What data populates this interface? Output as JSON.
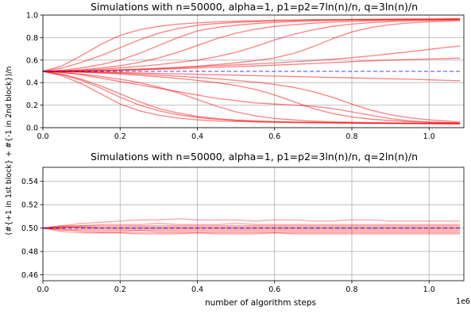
{
  "colors": {
    "series": "#ff0000",
    "reference": "#0000ff"
  },
  "shared": {
    "xlabel": "number of algorithm steps",
    "x_exponent_label": "1e6",
    "ylabel": "(#{+1 in 1st block} + #{-1 in 2nd block})/n"
  },
  "chart_data": [
    {
      "type": "line",
      "title": "Simulations with n=50000, alpha=1, p1=p2=7ln(n)/n, q=3ln(n)/n",
      "xlabel": "",
      "ylabel": "(#{+1 in 1st block} + #{-1 in 2nd block})/n",
      "xlim": [
        0,
        1.09
      ],
      "ylim": [
        0.0,
        1.0
      ],
      "xticks": [
        "0.0",
        "0.2",
        "0.4",
        "0.6",
        "0.8",
        "1.0"
      ],
      "yticks": [
        "0.0",
        "0.2",
        "0.4",
        "0.6",
        "0.8",
        "1.0"
      ],
      "grid": true,
      "reference_line": {
        "y": 0.5,
        "style": "dashed"
      },
      "x": [
        0.0,
        0.05,
        0.1,
        0.15,
        0.2,
        0.25,
        0.3,
        0.35,
        0.4,
        0.45,
        0.5,
        0.55,
        0.6,
        0.65,
        0.7,
        0.75,
        0.8,
        0.85,
        0.9,
        0.95,
        1.0,
        1.05,
        1.08
      ],
      "series": [
        {
          "values": [
            0.5,
            0.55,
            0.64,
            0.74,
            0.82,
            0.87,
            0.9,
            0.92,
            0.93,
            0.94,
            0.945,
            0.95,
            0.955,
            0.957,
            0.96,
            0.96,
            0.962,
            0.963,
            0.964,
            0.965,
            0.965,
            0.966,
            0.967
          ]
        },
        {
          "values": [
            0.5,
            0.53,
            0.58,
            0.64,
            0.71,
            0.78,
            0.84,
            0.88,
            0.91,
            0.925,
            0.935,
            0.942,
            0.948,
            0.952,
            0.955,
            0.957,
            0.959,
            0.96,
            0.962,
            0.963,
            0.964,
            0.965,
            0.966
          ]
        },
        {
          "values": [
            0.5,
            0.51,
            0.53,
            0.56,
            0.6,
            0.66,
            0.73,
            0.8,
            0.86,
            0.89,
            0.91,
            0.925,
            0.935,
            0.942,
            0.948,
            0.952,
            0.955,
            0.957,
            0.959,
            0.961,
            0.962,
            0.963,
            0.964
          ]
        },
        {
          "values": [
            0.5,
            0.505,
            0.515,
            0.53,
            0.55,
            0.58,
            0.62,
            0.67,
            0.73,
            0.79,
            0.84,
            0.875,
            0.9,
            0.915,
            0.928,
            0.937,
            0.944,
            0.949,
            0.953,
            0.956,
            0.958,
            0.96,
            0.961
          ]
        },
        {
          "values": [
            0.5,
            0.502,
            0.508,
            0.518,
            0.53,
            0.545,
            0.56,
            0.58,
            0.6,
            0.63,
            0.67,
            0.72,
            0.78,
            0.83,
            0.87,
            0.9,
            0.92,
            0.933,
            0.942,
            0.948,
            0.952,
            0.955,
            0.957
          ]
        },
        {
          "values": [
            0.5,
            0.501,
            0.503,
            0.506,
            0.51,
            0.516,
            0.524,
            0.534,
            0.546,
            0.56,
            0.576,
            0.595,
            0.62,
            0.66,
            0.72,
            0.79,
            0.85,
            0.89,
            0.915,
            0.93,
            0.94,
            0.946,
            0.95
          ]
        },
        {
          "values": [
            0.5,
            0.502,
            0.505,
            0.51,
            0.515,
            0.52,
            0.527,
            0.534,
            0.542,
            0.55,
            0.558,
            0.566,
            0.575,
            0.585,
            0.596,
            0.608,
            0.622,
            0.638,
            0.656,
            0.675,
            0.695,
            0.715,
            0.725
          ]
        },
        {
          "values": [
            0.5,
            0.501,
            0.503,
            0.506,
            0.51,
            0.514,
            0.519,
            0.524,
            0.53,
            0.536,
            0.542,
            0.548,
            0.555,
            0.562,
            0.57,
            0.578,
            0.586,
            0.594,
            0.6,
            0.605,
            0.61,
            0.615,
            0.618
          ]
        },
        {
          "values": [
            0.5,
            0.499,
            0.497,
            0.494,
            0.49,
            0.486,
            0.482,
            0.478,
            0.474,
            0.47,
            0.466,
            0.462,
            0.458,
            0.454,
            0.45,
            0.446,
            0.442,
            0.438,
            0.434,
            0.43,
            0.425,
            0.42,
            0.417
          ]
        },
        {
          "values": [
            0.5,
            0.49,
            0.47,
            0.44,
            0.41,
            0.38,
            0.35,
            0.32,
            0.29,
            0.26,
            0.24,
            0.22,
            0.21,
            0.2,
            0.19,
            0.17,
            0.14,
            0.11,
            0.08,
            0.06,
            0.05,
            0.045,
            0.04
          ]
        },
        {
          "values": [
            0.5,
            0.46,
            0.39,
            0.3,
            0.21,
            0.15,
            0.11,
            0.085,
            0.07,
            0.06,
            0.055,
            0.05,
            0.047,
            0.045,
            0.043,
            0.042,
            0.041,
            0.04,
            0.039,
            0.038,
            0.037,
            0.036,
            0.035
          ]
        },
        {
          "values": [
            0.5,
            0.47,
            0.42,
            0.35,
            0.27,
            0.2,
            0.15,
            0.115,
            0.09,
            0.075,
            0.065,
            0.058,
            0.053,
            0.05,
            0.047,
            0.045,
            0.043,
            0.041,
            0.04,
            0.039,
            0.038,
            0.037,
            0.036
          ]
        },
        {
          "values": [
            0.5,
            0.49,
            0.475,
            0.455,
            0.43,
            0.4,
            0.36,
            0.31,
            0.25,
            0.19,
            0.14,
            0.105,
            0.082,
            0.068,
            0.058,
            0.052,
            0.048,
            0.045,
            0.042,
            0.04,
            0.038,
            0.037,
            0.036
          ]
        },
        {
          "values": [
            0.5,
            0.497,
            0.492,
            0.485,
            0.476,
            0.465,
            0.452,
            0.437,
            0.42,
            0.4,
            0.375,
            0.34,
            0.29,
            0.23,
            0.17,
            0.125,
            0.095,
            0.075,
            0.062,
            0.053,
            0.047,
            0.043,
            0.04
          ]
        },
        {
          "values": [
            0.5,
            0.498,
            0.495,
            0.49,
            0.484,
            0.476,
            0.467,
            0.457,
            0.446,
            0.434,
            0.42,
            0.404,
            0.384,
            0.358,
            0.32,
            0.27,
            0.21,
            0.155,
            0.115,
            0.088,
            0.07,
            0.058,
            0.05
          ]
        },
        {
          "values": [
            0.5,
            0.475,
            0.43,
            0.37,
            0.3,
            0.23,
            0.17,
            0.13,
            0.1,
            0.08,
            0.067,
            0.058,
            0.052,
            0.048,
            0.045,
            0.042,
            0.04,
            0.038,
            0.037,
            0.036,
            0.035,
            0.034,
            0.033
          ]
        }
      ]
    },
    {
      "type": "line",
      "title": "Simulations with n=50000, alpha=1, p1=p2=3ln(n)/n, q=2ln(n)/n",
      "xlabel": "number of algorithm steps",
      "ylabel": "(#{+1 in 1st block} + #{-1 in 2nd block})/n",
      "xlim": [
        0,
        1.09
      ],
      "ylim": [
        0.455,
        0.552
      ],
      "xticks": [
        "0.0",
        "0.2",
        "0.4",
        "0.6",
        "0.8",
        "1.0"
      ],
      "yticks": [
        "0.46",
        "0.48",
        "0.50",
        "0.52",
        "0.54"
      ],
      "grid": true,
      "reference_line": {
        "y": 0.5,
        "style": "dashed"
      },
      "x": [
        0.0,
        0.05,
        0.1,
        0.15,
        0.2,
        0.25,
        0.3,
        0.35,
        0.4,
        0.45,
        0.5,
        0.55,
        0.6,
        0.65,
        0.7,
        0.75,
        0.8,
        0.85,
        0.9,
        0.95,
        1.0,
        1.05,
        1.08
      ],
      "series": [
        {
          "values": [
            0.5,
            0.502,
            0.504,
            0.505,
            0.506,
            0.507,
            0.507,
            0.508,
            0.507,
            0.507,
            0.507,
            0.506,
            0.507,
            0.507,
            0.506,
            0.506,
            0.507,
            0.507,
            0.506,
            0.506,
            0.506,
            0.506,
            0.506
          ]
        },
        {
          "values": [
            0.5,
            0.499,
            0.497,
            0.496,
            0.496,
            0.495,
            0.495,
            0.495,
            0.496,
            0.495,
            0.495,
            0.495,
            0.496,
            0.495,
            0.495,
            0.495,
            0.495,
            0.495,
            0.495,
            0.495,
            0.495,
            0.495,
            0.495
          ]
        },
        {
          "values": [
            0.5,
            0.501,
            0.502,
            0.503,
            0.503,
            0.503,
            0.504,
            0.503,
            0.503,
            0.503,
            0.504,
            0.503,
            0.503,
            0.503,
            0.503,
            0.503,
            0.503,
            0.503,
            0.503,
            0.503,
            0.503,
            0.503,
            0.503
          ]
        },
        {
          "values": [
            0.5,
            0.499,
            0.498,
            0.497,
            0.497,
            0.498,
            0.497,
            0.497,
            0.497,
            0.497,
            0.497,
            0.497,
            0.497,
            0.497,
            0.497,
            0.497,
            0.497,
            0.497,
            0.497,
            0.497,
            0.497,
            0.497,
            0.497
          ]
        },
        {
          "values": [
            0.5,
            0.5,
            0.501,
            0.501,
            0.501,
            0.501,
            0.501,
            0.501,
            0.501,
            0.501,
            0.501,
            0.501,
            0.501,
            0.501,
            0.501,
            0.501,
            0.501,
            0.501,
            0.501,
            0.501,
            0.501,
            0.501,
            0.501
          ]
        },
        {
          "values": [
            0.5,
            0.501,
            0.5,
            0.499,
            0.499,
            0.499,
            0.499,
            0.499,
            0.499,
            0.499,
            0.499,
            0.499,
            0.499,
            0.499,
            0.499,
            0.499,
            0.499,
            0.499,
            0.499,
            0.499,
            0.499,
            0.499,
            0.499
          ]
        },
        {
          "values": [
            0.5,
            0.502,
            0.502,
            0.502,
            0.502,
            0.502,
            0.502,
            0.502,
            0.502,
            0.502,
            0.502,
            0.502,
            0.502,
            0.502,
            0.502,
            0.502,
            0.502,
            0.502,
            0.502,
            0.502,
            0.502,
            0.502,
            0.502
          ]
        },
        {
          "values": [
            0.5,
            0.498,
            0.499,
            0.498,
            0.498,
            0.498,
            0.498,
            0.498,
            0.498,
            0.498,
            0.498,
            0.498,
            0.498,
            0.498,
            0.498,
            0.498,
            0.498,
            0.498,
            0.498,
            0.498,
            0.498,
            0.498,
            0.498
          ]
        },
        {
          "values": [
            0.5,
            0.501,
            0.501,
            0.5,
            0.5,
            0.5,
            0.5,
            0.5,
            0.5,
            0.5,
            0.5,
            0.5,
            0.5,
            0.5,
            0.5,
            0.5,
            0.5,
            0.5,
            0.5,
            0.5,
            0.5,
            0.5,
            0.5
          ]
        },
        {
          "values": [
            0.5,
            0.497,
            0.496,
            0.496,
            0.496,
            0.496,
            0.496,
            0.496,
            0.496,
            0.496,
            0.496,
            0.496,
            0.496,
            0.496,
            0.496,
            0.496,
            0.496,
            0.496,
            0.496,
            0.496,
            0.496,
            0.496,
            0.496
          ]
        }
      ]
    }
  ]
}
